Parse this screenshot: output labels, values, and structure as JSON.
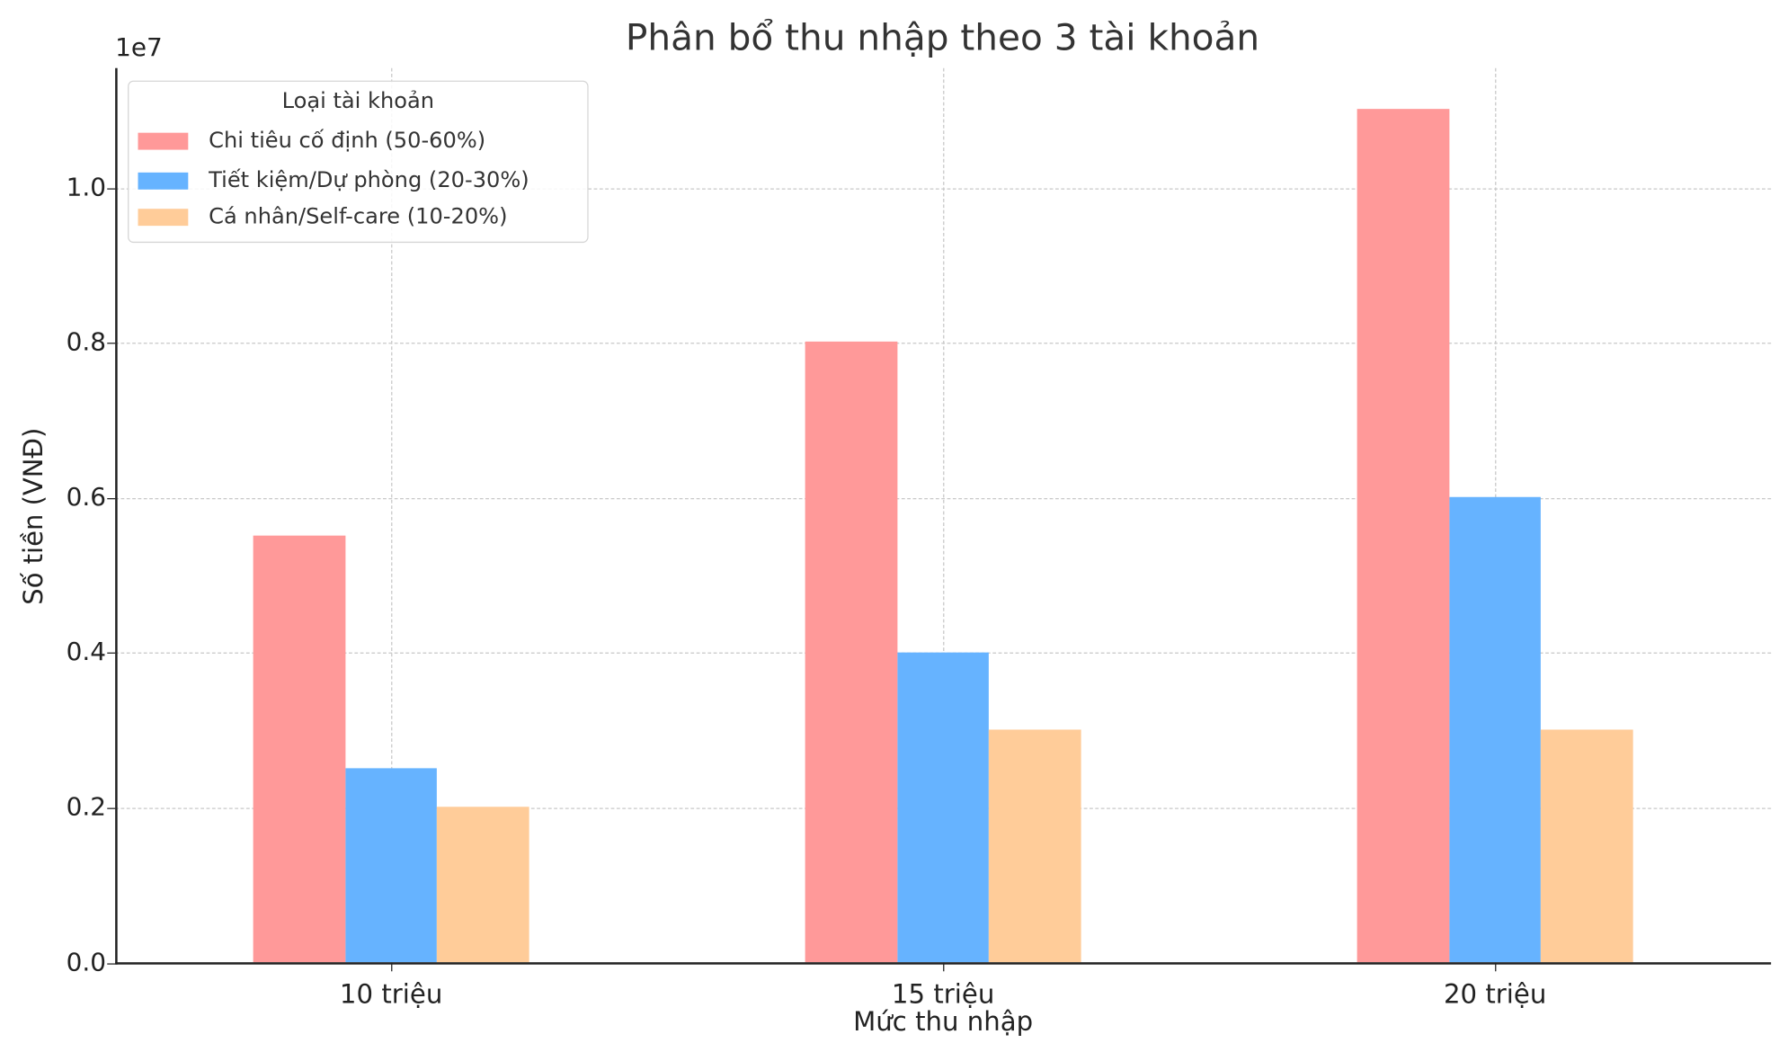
{
  "title": "Phân bổ thu nhập theo 3 tài khoản",
  "y_offset_label": "1e7",
  "xlabel": "Mức thu nhập",
  "ylabel": "Số tiền (VNĐ)",
  "y_ticks": [
    "0.0",
    "0.2",
    "0.4",
    "0.6",
    "0.8",
    "1.0"
  ],
  "x_ticks": [
    "10 triệu",
    "15 triệu",
    "20 triệu"
  ],
  "legend": {
    "title": "Loại tài khoản",
    "items": [
      {
        "label": "Chi tiêu cố định (50-60%)",
        "color": "#ff9999"
      },
      {
        "label": "Tiết kiệm/Dự phòng (20-30%)",
        "color": "#66b3ff"
      },
      {
        "label": "Cá nhân/Self-care (10-20%)",
        "color": "#ffcc99"
      }
    ]
  },
  "chart_data": {
    "type": "bar",
    "title": "Phân bổ thu nhập theo 3 tài khoản",
    "xlabel": "Mức thu nhập",
    "ylabel": "Số tiền (VNĐ)",
    "y_scale_offset": "1e7",
    "categories": [
      "10 triệu",
      "15 triệu",
      "20 triệu"
    ],
    "series": [
      {
        "name": "Chi tiêu cố định (50-60%)",
        "color": "#ff9999",
        "values": [
          5500000,
          8000000,
          11000000
        ]
      },
      {
        "name": "Tiết kiệm/Dự phòng (20-30%)",
        "color": "#66b3ff",
        "values": [
          2500000,
          4000000,
          6000000
        ]
      },
      {
        "name": "Cá nhân/Self-care (10-20%)",
        "color": "#ffcc99",
        "values": [
          2000000,
          3000000,
          3000000
        ]
      }
    ],
    "ylim": [
      0,
      11550000
    ],
    "y_ticks": [
      0,
      2000000,
      4000000,
      6000000,
      8000000,
      10000000
    ],
    "grid": true,
    "legend_position": "upper left",
    "legend_title": "Loại tài khoản"
  }
}
